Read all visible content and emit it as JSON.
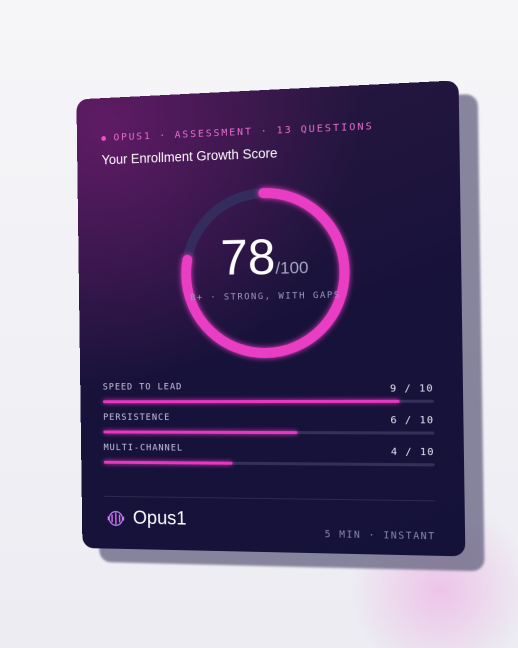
{
  "header": {
    "eyebrow": "OPUS1 · ASSESSMENT · 13 QUESTIONS",
    "title": "Your Enrollment Growth Score"
  },
  "score": {
    "value": 78,
    "max": {
      "value": 100,
      "label": "/100"
    },
    "grade": "B+ · STRONG, WITH GAPS"
  },
  "metrics": [
    {
      "name": "SPEED TO LEAD",
      "score": 9,
      "max": 10,
      "label": "9 / 10"
    },
    {
      "name": "PERSISTENCE",
      "score": 6,
      "max": 10,
      "label": "6 / 10"
    },
    {
      "name": "MULTI-CHANNEL",
      "score": 4,
      "max": 10,
      "label": "4 / 10"
    }
  ],
  "footer": {
    "brand": "Opus1",
    "meta": "5 MIN · INSTANT"
  }
}
